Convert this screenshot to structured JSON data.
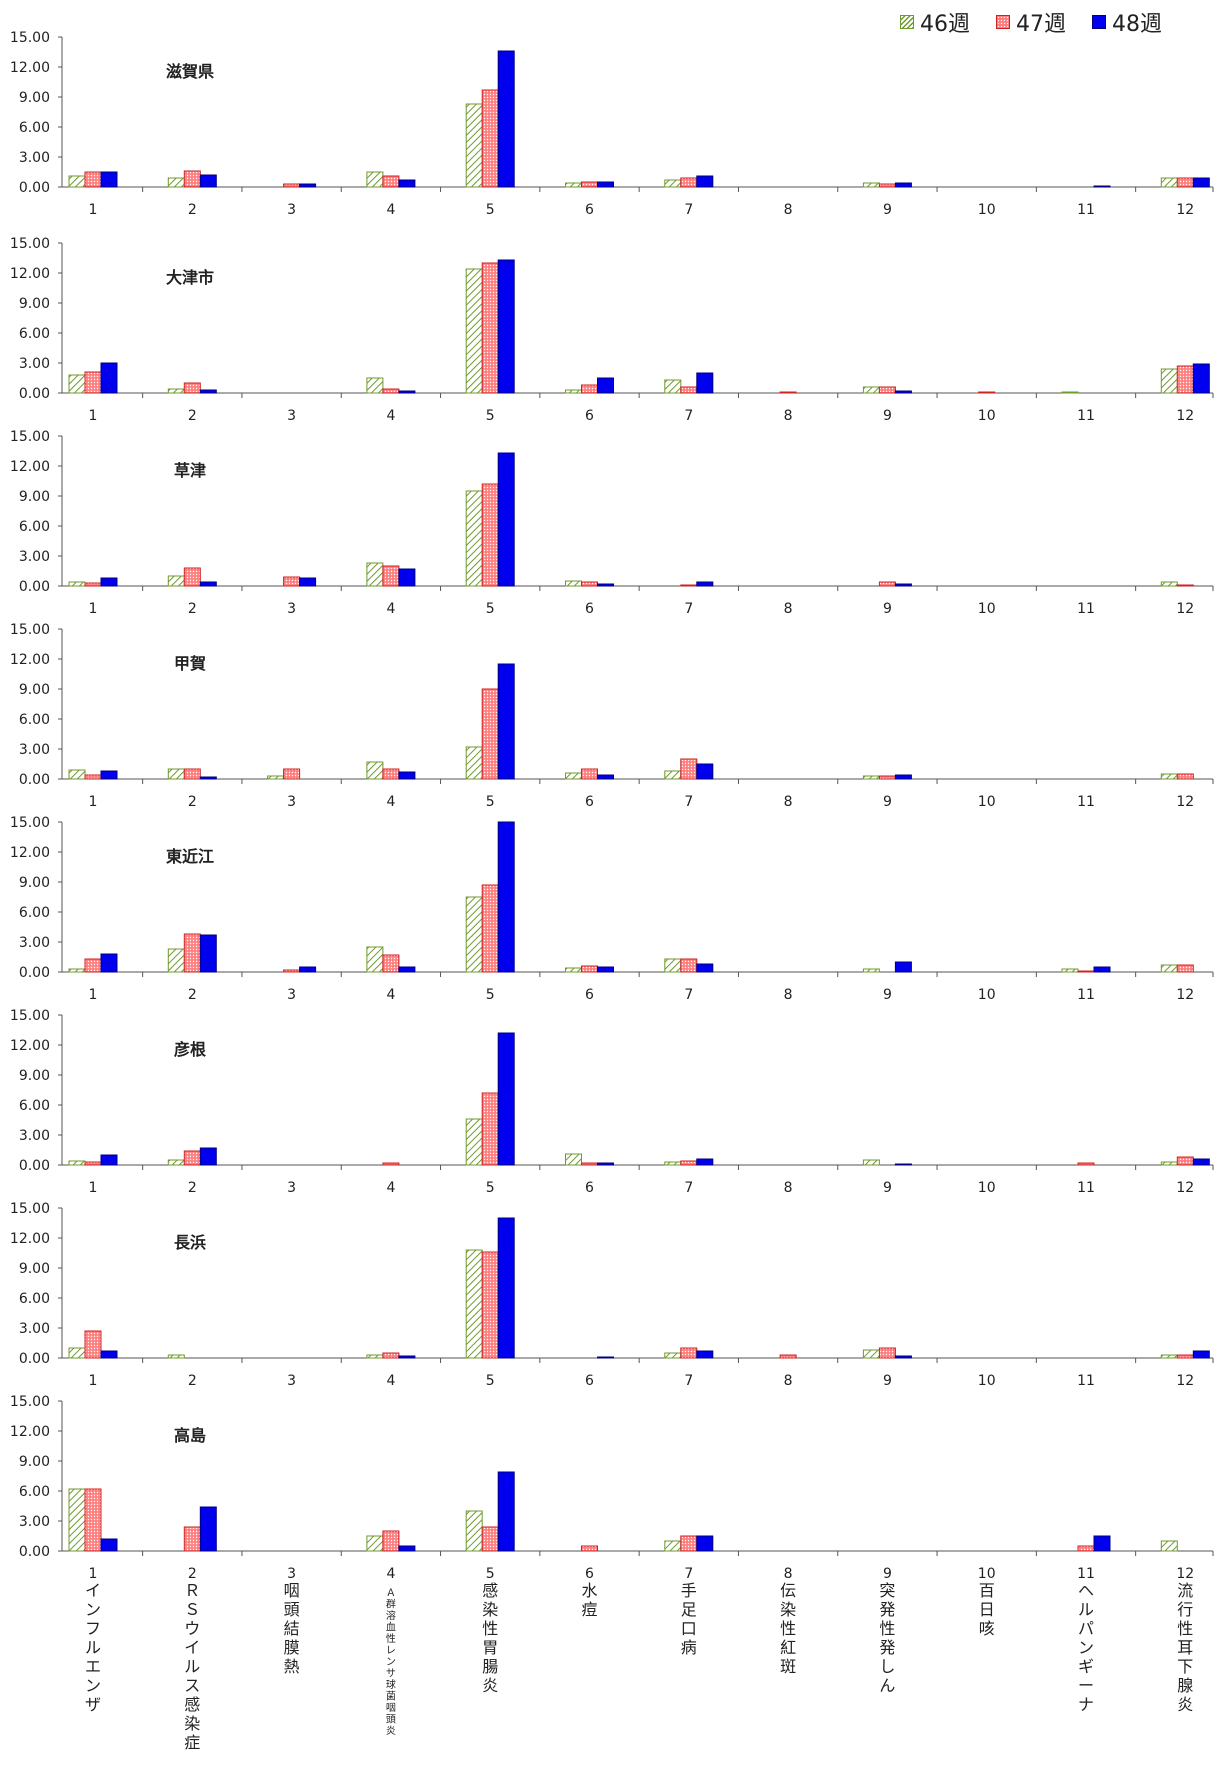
{
  "legend": {
    "series": [
      "46週",
      "47週",
      "48週"
    ]
  },
  "colors": {
    "w46_stroke": "#6f9a2d",
    "w47_fill": "#ff7f7f",
    "w47_stroke": "#cc2222",
    "w48_fill": "#0000ee",
    "w48_stroke": "#000080"
  },
  "chart_data": {
    "type": "bar",
    "categories": [
      "1",
      "2",
      "3",
      "4",
      "5",
      "6",
      "7",
      "8",
      "9",
      "10",
      "11",
      "12"
    ],
    "category_names": [
      "インフルエンザ",
      "ＲＳウイルス感染症",
      "咽頭結膜熱",
      "Ａ群溶血性レンサ球菌咽頭炎",
      "感染性胃腸炎",
      "水痘",
      "手足口病",
      "伝染性紅斑",
      "突発性発しん",
      "百日咳",
      "ヘルパンギーナ",
      "流行性耳下腺炎"
    ],
    "yticks": [
      "0.00",
      "3.00",
      "6.00",
      "9.00",
      "12.00",
      "15.00"
    ],
    "ylim": [
      0,
      15
    ],
    "series_names": [
      "46週",
      "47週",
      "48週"
    ],
    "panels": [
      {
        "title": "滋賀県",
        "series": [
          {
            "name": "46週",
            "values": [
              1.1,
              0.9,
              0,
              1.5,
              8.3,
              0.4,
              0.7,
              0,
              0.4,
              0,
              0,
              0.9
            ]
          },
          {
            "name": "47週",
            "values": [
              1.5,
              1.6,
              0.3,
              1.1,
              9.7,
              0.5,
              0.9,
              0,
              0.3,
              0,
              0,
              0.9
            ]
          },
          {
            "name": "48週",
            "values": [
              1.5,
              1.2,
              0.3,
              0.7,
              13.6,
              0.5,
              1.1,
              0,
              0.4,
              0,
              0.1,
              0.9
            ]
          }
        ]
      },
      {
        "title": "大津市",
        "series": [
          {
            "name": "46週",
            "values": [
              1.8,
              0.4,
              0,
              1.5,
              12.4,
              0.3,
              1.3,
              0,
              0.6,
              0,
              0.1,
              2.4
            ]
          },
          {
            "name": "47週",
            "values": [
              2.1,
              1.0,
              0,
              0.4,
              13.0,
              0.8,
              0.6,
              0.1,
              0.6,
              0.1,
              0,
              2.7
            ]
          },
          {
            "name": "48週",
            "values": [
              3.0,
              0.3,
              0,
              0.2,
              13.3,
              1.5,
              2.0,
              0,
              0.2,
              0,
              0,
              2.9
            ]
          }
        ]
      },
      {
        "title": "草津",
        "series": [
          {
            "name": "46週",
            "values": [
              0.4,
              1.0,
              0,
              2.3,
              9.5,
              0.5,
              0,
              0,
              0,
              0,
              0,
              0.4
            ]
          },
          {
            "name": "47週",
            "values": [
              0.3,
              1.8,
              0.9,
              2.0,
              10.2,
              0.4,
              0.1,
              0,
              0.4,
              0,
              0,
              0.1
            ]
          },
          {
            "name": "48週",
            "values": [
              0.8,
              0.4,
              0.8,
              1.7,
              13.3,
              0.2,
              0.4,
              0,
              0.2,
              0,
              0,
              0
            ]
          }
        ]
      },
      {
        "title": "甲賀",
        "series": [
          {
            "name": "46週",
            "values": [
              0.9,
              1.0,
              0.3,
              1.7,
              3.2,
              0.6,
              0.8,
              0,
              0.3,
              0,
              0,
              0.5
            ]
          },
          {
            "name": "47週",
            "values": [
              0.4,
              1.0,
              1.0,
              1.0,
              9.0,
              1.0,
              2.0,
              0,
              0.3,
              0,
              0,
              0.5
            ]
          },
          {
            "name": "48週",
            "values": [
              0.8,
              0.2,
              0,
              0.7,
              11.5,
              0.4,
              1.5,
              0,
              0.4,
              0,
              0,
              0
            ]
          }
        ]
      },
      {
        "title": "東近江",
        "series": [
          {
            "name": "46週",
            "values": [
              0.3,
              2.3,
              0,
              2.5,
              7.5,
              0.4,
              1.3,
              0,
              0.3,
              0,
              0.3,
              0.7
            ]
          },
          {
            "name": "47週",
            "values": [
              1.3,
              3.8,
              0.2,
              1.7,
              8.7,
              0.6,
              1.3,
              0,
              0,
              0,
              0.1,
              0.7
            ]
          },
          {
            "name": "48週",
            "values": [
              1.8,
              3.7,
              0.5,
              0.5,
              15.0,
              0.5,
              0.8,
              0,
              1.0,
              0,
              0.5,
              0
            ]
          }
        ]
      },
      {
        "title": "彦根",
        "series": [
          {
            "name": "46週",
            "values": [
              0.4,
              0.5,
              0,
              0,
              4.6,
              1.1,
              0.3,
              0,
              0.5,
              0,
              0,
              0.3
            ]
          },
          {
            "name": "47週",
            "values": [
              0.3,
              1.4,
              0,
              0.2,
              7.2,
              0.2,
              0.4,
              0,
              0,
              0,
              0.2,
              0.8
            ]
          },
          {
            "name": "48週",
            "values": [
              1.0,
              1.7,
              0,
              0,
              13.2,
              0.2,
              0.6,
              0,
              0.1,
              0,
              0,
              0.6
            ]
          }
        ]
      },
      {
        "title": "長浜",
        "series": [
          {
            "name": "46週",
            "values": [
              1.0,
              0.3,
              0,
              0.3,
              10.8,
              0,
              0.5,
              0,
              0.8,
              0,
              0,
              0.3
            ]
          },
          {
            "name": "47週",
            "values": [
              2.7,
              0,
              0,
              0.5,
              10.6,
              0,
              1.0,
              0.3,
              1.0,
              0,
              0,
              0.3
            ]
          },
          {
            "name": "48週",
            "values": [
              0.7,
              0,
              0,
              0.2,
              14.0,
              0.1,
              0.7,
              0,
              0.2,
              0,
              0,
              0.7
            ]
          }
        ]
      },
      {
        "title": "高島",
        "series": [
          {
            "name": "46週",
            "values": [
              6.2,
              0,
              0,
              1.5,
              4.0,
              0,
              1.0,
              0,
              0,
              0,
              0,
              1.0
            ]
          },
          {
            "name": "47週",
            "values": [
              6.2,
              2.4,
              0,
              2.0,
              2.4,
              0.5,
              1.5,
              0,
              0,
              0,
              0.5,
              0
            ]
          },
          {
            "name": "48週",
            "values": [
              1.2,
              4.4,
              0,
              0.5,
              7.9,
              0,
              1.5,
              0,
              0,
              0,
              1.5,
              0
            ]
          }
        ]
      }
    ]
  }
}
